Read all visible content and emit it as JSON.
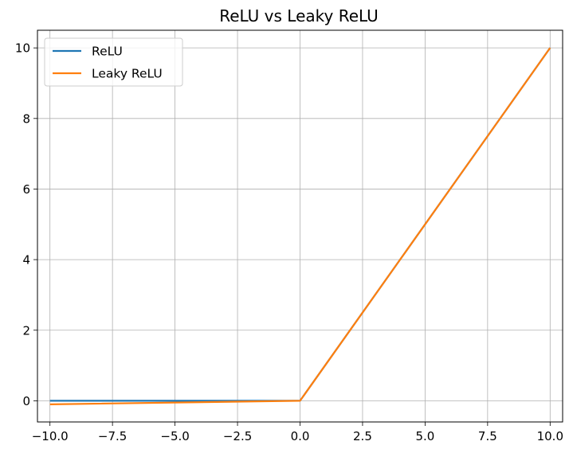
{
  "chart_data": {
    "type": "line",
    "title": "ReLU vs Leaky ReLU",
    "xlabel": "",
    "ylabel": "",
    "xlim": [
      -10.5,
      10.5
    ],
    "ylim": [
      -0.6,
      10.5
    ],
    "x_ticks": [
      -10.0,
      -7.5,
      -5.0,
      -2.5,
      0.0,
      2.5,
      5.0,
      7.5,
      10.0
    ],
    "x_tick_labels": [
      "−10.0",
      "−7.5",
      "−5.0",
      "−2.5",
      "0.0",
      "2.5",
      "5.0",
      "7.5",
      "10.0"
    ],
    "y_ticks": [
      0,
      2,
      4,
      6,
      8,
      10
    ],
    "y_tick_labels": [
      "0",
      "2",
      "4",
      "6",
      "8",
      "10"
    ],
    "grid": true,
    "legend_position": "top-left",
    "series": [
      {
        "name": "ReLU",
        "color": "#1f77b4",
        "x": [
          -10,
          0,
          10
        ],
        "y": [
          0,
          0,
          10
        ]
      },
      {
        "name": "Leaky ReLU",
        "color": "#ff7f0e",
        "x": [
          -10,
          0,
          10
        ],
        "y": [
          -0.1,
          0,
          10
        ]
      }
    ]
  }
}
